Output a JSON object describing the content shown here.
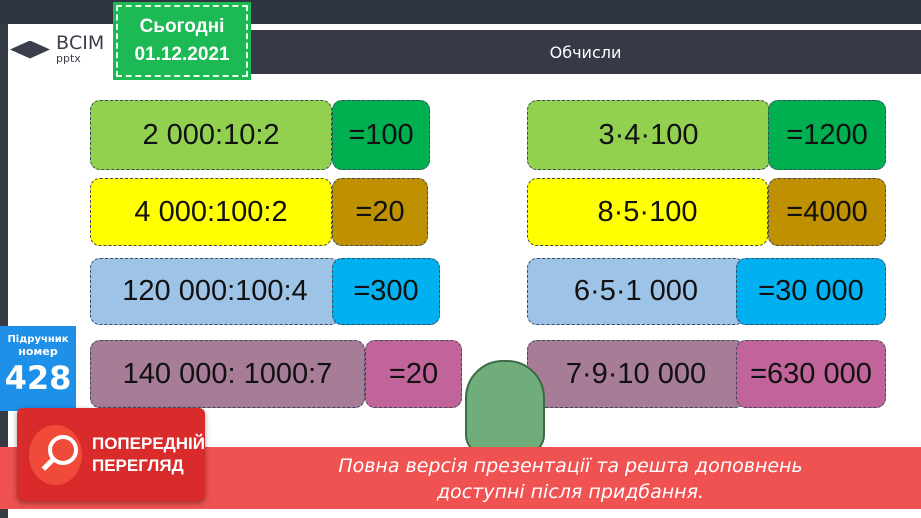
{
  "header": {
    "title": "Обчисли",
    "date_label": "Сьогодні",
    "date": "01.12.2021",
    "logo_text": "ВСІМ",
    "logo_sub": "pptx"
  },
  "sidebar": {
    "label1": "Підручник",
    "label2": "номер",
    "number": "428"
  },
  "left": [
    {
      "expr": "2 000:10:2",
      "answer": "=100",
      "color": "#92d050",
      "answer_color": "#00b050"
    },
    {
      "expr": "4 000:100:2",
      "answer": "=20",
      "color": "#ffff00",
      "answer_color": "#bf9000"
    },
    {
      "expr": "120 000:100:4",
      "answer": "=300",
      "color": "#9dc3e6",
      "answer_color": "#00b0f0"
    },
    {
      "expr": "140 000: 1000:7",
      "answer": "=20",
      "color": "#a67c96",
      "answer_color": "#c0649a"
    }
  ],
  "right": [
    {
      "expr": "3·4·100",
      "answer": "=1200",
      "color": "#92d050",
      "answer_color": "#00b050"
    },
    {
      "expr": "8·5·100",
      "answer": "=4000",
      "color": "#ffff00",
      "answer_color": "#bf9000"
    },
    {
      "expr": "6·5·1 000",
      "answer": "=30 000",
      "color": "#9dc3e6",
      "answer_color": "#00b0f0"
    },
    {
      "expr": "7·9·10 000",
      "answer": "=630 000",
      "color": "#a67c96",
      "answer_color": "#c0649a"
    }
  ],
  "preview": {
    "line1": "ПОПЕРЕДНІЙ",
    "line2": "ПЕРЕГЛЯД"
  },
  "banner": {
    "line1": "Повна версія презентації та решта доповнень",
    "line2": "доступні після придбання."
  }
}
